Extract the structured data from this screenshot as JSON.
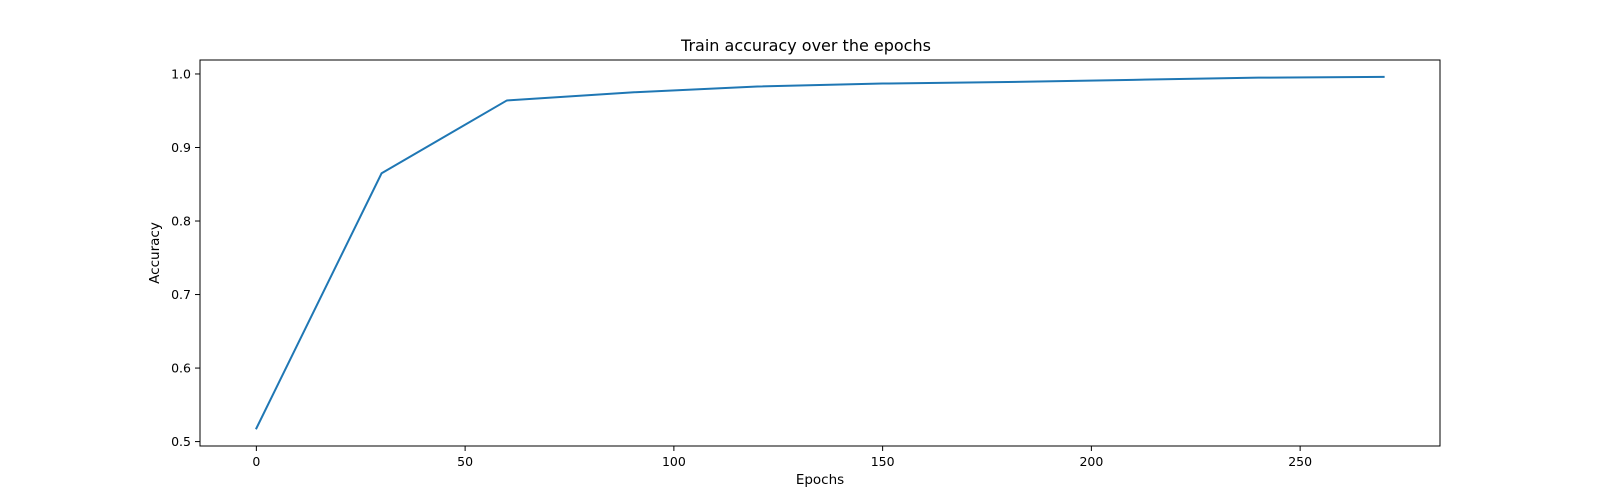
{
  "chart_data": {
    "type": "line",
    "title": "Train accuracy over the epochs",
    "xlabel": "Epochs",
    "ylabel": "Accuracy",
    "xlim": [
      -13.5,
      283.5
    ],
    "ylim": [
      0.494,
      1.019
    ],
    "xticks": [
      0,
      50,
      100,
      150,
      200,
      250
    ],
    "yticks": [
      0.5,
      0.6,
      0.7,
      0.8,
      0.9,
      1.0
    ],
    "xtick_labels": [
      "0",
      "50",
      "100",
      "150",
      "200",
      "250"
    ],
    "ytick_labels": [
      "0.5",
      "0.6",
      "0.7",
      "0.8",
      "0.9",
      "1.0"
    ],
    "grid": false,
    "series": [
      {
        "color": "#1f77b4",
        "x": [
          0,
          30,
          60,
          90,
          120,
          150,
          180,
          210,
          240,
          270
        ],
        "y": [
          0.518,
          0.865,
          0.964,
          0.975,
          0.983,
          0.987,
          0.989,
          0.992,
          0.995,
          0.996
        ]
      }
    ]
  }
}
